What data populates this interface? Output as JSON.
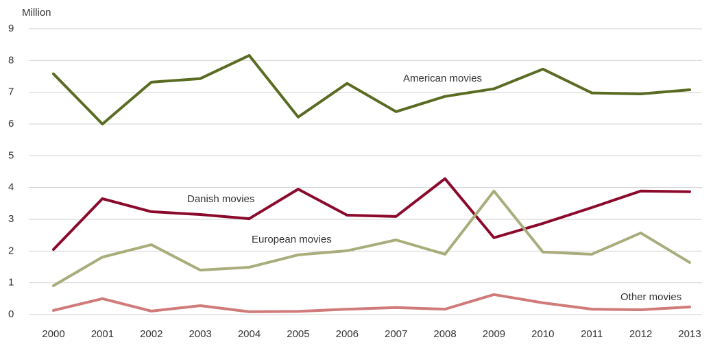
{
  "chart_data": {
    "type": "line",
    "y_label": "Million",
    "categories": [
      "2000",
      "2001",
      "2002",
      "2003",
      "2004",
      "2005",
      "2006",
      "2007",
      "2008",
      "2009",
      "2010",
      "2011",
      "2012",
      "2013"
    ],
    "series": [
      {
        "name": "American movies",
        "color": "#5a6b22",
        "values": [
          7.58,
          6.0,
          7.32,
          7.43,
          8.16,
          6.22,
          7.28,
          6.39,
          6.87,
          7.11,
          7.73,
          6.98,
          6.95,
          7.08
        ]
      },
      {
        "name": "Danish movies",
        "color": "#8b0a2c",
        "values": [
          2.05,
          3.65,
          3.24,
          3.15,
          3.02,
          3.95,
          3.13,
          3.09,
          4.28,
          2.42,
          2.87,
          3.37,
          3.89,
          3.87
        ]
      },
      {
        "name": "European movies",
        "color": "#a9ad7b",
        "values": [
          0.91,
          1.81,
          2.2,
          1.4,
          1.49,
          1.88,
          2.01,
          2.35,
          1.9,
          3.89,
          1.97,
          1.9,
          2.57,
          1.64
        ]
      },
      {
        "name": "Other movies",
        "color": "#d07a7a",
        "values": [
          0.13,
          0.5,
          0.11,
          0.28,
          0.09,
          0.1,
          0.17,
          0.22,
          0.17,
          0.63,
          0.37,
          0.17,
          0.15,
          0.24
        ]
      }
    ],
    "ylim": [
      0,
      9
    ],
    "yticks": [
      0,
      1,
      2,
      3,
      4,
      5,
      6,
      7,
      8,
      9
    ],
    "grid": true
  }
}
